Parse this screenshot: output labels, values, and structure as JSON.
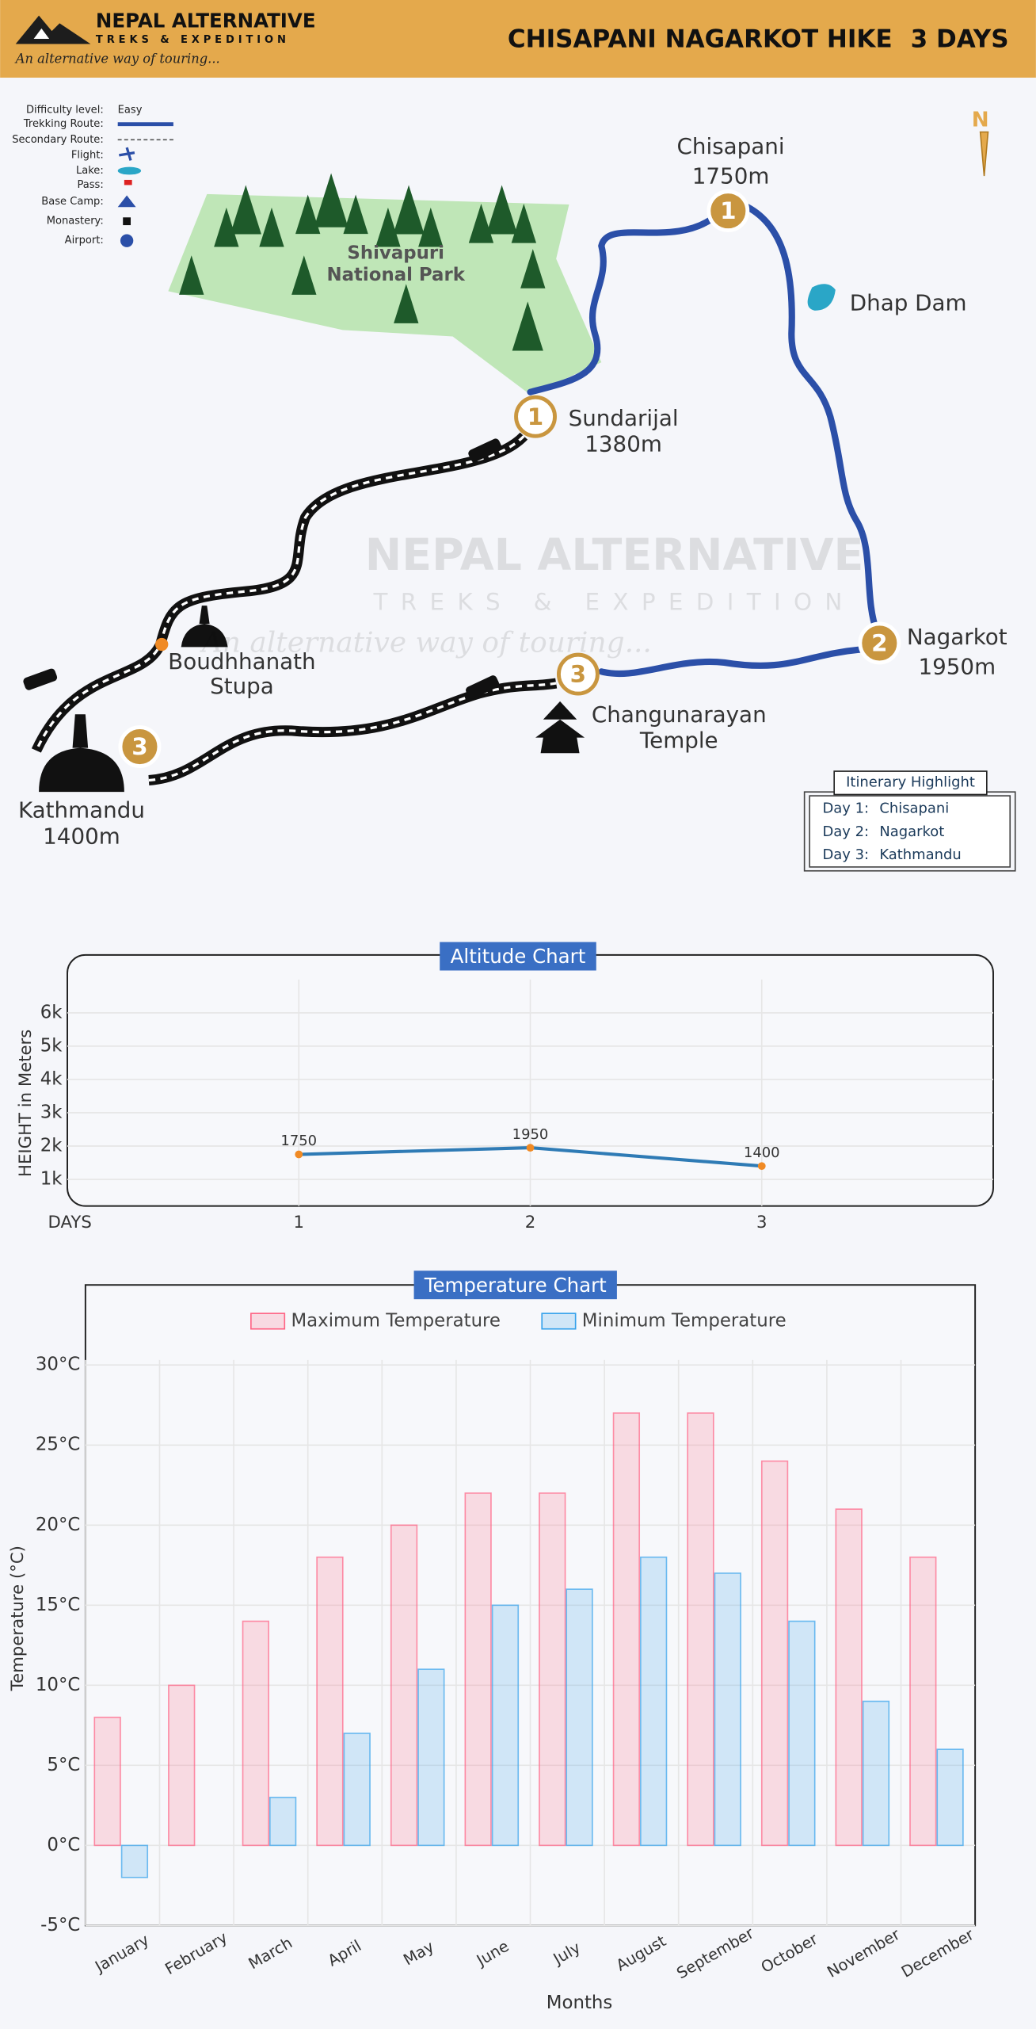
{
  "header": {
    "brand": "NEPAL ALTERNATIVE",
    "subbrand": "TREKS & EXPEDITION",
    "tagline": "An alternative way of touring...",
    "title": "CHISAPANI NAGARKOT HIKE",
    "duration": "3 DAYS"
  },
  "legend": {
    "items": [
      "Difficulty level:",
      "Trekking Route:",
      "Secondary Route:",
      "Flight:",
      "Lake:",
      "Pass:",
      "Base Camp:",
      "Monastery:",
      "Airport:"
    ],
    "difficulty": "Easy"
  },
  "map": {
    "compass": "N",
    "park": [
      "Shivapuri",
      "National Park"
    ],
    "lake": "Dhap Dam",
    "places": [
      {
        "lines": [
          "Chisapani",
          "1750m"
        ],
        "marker": "1"
      },
      {
        "lines": [
          "Sundarijal",
          "1380m"
        ],
        "marker": "1"
      },
      {
        "lines": [
          "Nagarkot",
          "1950m"
        ],
        "marker": "2"
      },
      {
        "lines": [
          "Changunarayan",
          "Temple"
        ],
        "marker": "3"
      },
      {
        "lines": [
          "Kathmandu",
          "1400m"
        ],
        "marker": "3"
      },
      {
        "lines": [
          "Boudhhanath",
          "Stupa"
        ]
      }
    ]
  },
  "watermark": {
    "brand": "NEPAL ALTERNATIVE",
    "subbrand": "TREKS & EXPEDITION",
    "tagline": "An alternative way of touring..."
  },
  "itinerary": {
    "title": "Itinerary Highlight",
    "rows": [
      [
        "Day 1:",
        "Chisapani"
      ],
      [
        "Day 2:",
        "Nagarkot"
      ],
      [
        "Day 3:",
        "Kathmandu"
      ]
    ]
  },
  "chart_data": [
    {
      "type": "line",
      "title": "Altitude Chart",
      "y_label": "HEIGHT in Meters",
      "x_label": "DAYS",
      "x": [
        1,
        2,
        3
      ],
      "values": [
        1750,
        1950,
        1400
      ],
      "color": "#2f7bb5",
      "point_color": "#f08a24",
      "xlim": [
        0,
        4
      ],
      "xticks": [
        1,
        2,
        3
      ],
      "ylim": [
        200,
        7000
      ],
      "yticks": [
        {
          "value": 1000,
          "label": "1k"
        },
        {
          "value": 2000,
          "label": "2k"
        },
        {
          "value": 3000,
          "label": "3k"
        },
        {
          "value": 4000,
          "label": "4k"
        },
        {
          "value": 5000,
          "label": "5k"
        },
        {
          "value": 6000,
          "label": "6k"
        }
      ],
      "grid": true
    },
    {
      "type": "bar",
      "title": "Temperature Chart",
      "y_label": "Temperature (°C)",
      "x_label": "Months",
      "categories": [
        "January",
        "February",
        "March",
        "April",
        "May",
        "June",
        "July",
        "August",
        "September",
        "October",
        "November",
        "December"
      ],
      "series": [
        {
          "name": "Maximum Temperature",
          "color": "#ff6384",
          "values": [
            8,
            10,
            14,
            18,
            20,
            22,
            22,
            27,
            27,
            24,
            21,
            18
          ]
        },
        {
          "name": "Minimum Temperature",
          "color": "#36a2eb",
          "values": [
            -2,
            0,
            3,
            7,
            11,
            15,
            16,
            18,
            17,
            14,
            9,
            6
          ]
        }
      ],
      "ylim": [
        -5,
        35
      ],
      "yticks": [
        {
          "value": -5,
          "label": "-5°C"
        },
        {
          "value": 0,
          "label": "0°C"
        },
        {
          "value": 5,
          "label": "5°C"
        },
        {
          "value": 10,
          "label": "10°C"
        },
        {
          "value": 15,
          "label": "15°C"
        },
        {
          "value": 20,
          "label": "20°C"
        },
        {
          "value": 25,
          "label": "25°C"
        },
        {
          "value": 30,
          "label": "30°C"
        }
      ],
      "grid": true,
      "legend": "top"
    }
  ]
}
